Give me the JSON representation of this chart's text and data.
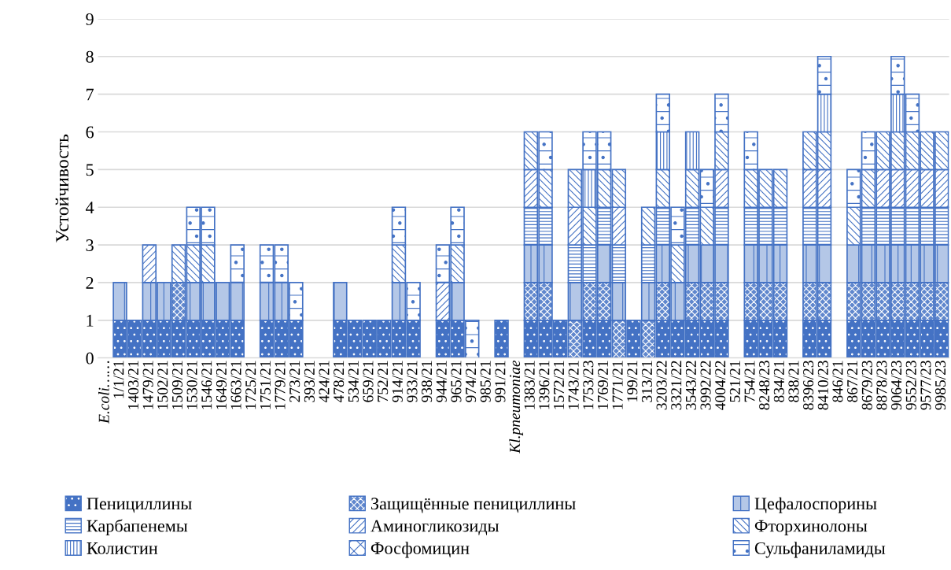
{
  "chart_data": {
    "type": "bar",
    "stacked": true,
    "ylabel": "Устойчивость",
    "categories": [
      "E.coli……",
      "1/1/21",
      "1403/21",
      "1479/21",
      "1502/21",
      "1509/21",
      "1530/21",
      "1546/21",
      "1649/21",
      "1663/21",
      "1725/21",
      "1751/21",
      "1779/21",
      "273/21",
      "393/21",
      "424/21",
      "478/21",
      "534/21",
      "659/21",
      "752/21",
      "914/21",
      "933/21",
      "938/21",
      "944/21",
      "965/21",
      "974/21",
      "985/21",
      "991/21",
      "Kl.pneumoniae",
      "1383/21",
      "1396/21",
      "1572/21",
      "1743/21",
      "1753/23",
      "1769/21",
      "1771/21",
      "199/21",
      "313/21",
      "3203/22",
      "3321/22",
      "3543/22",
      "3992/22",
      "4004/22",
      "521/21",
      "754/21",
      "8248/23",
      "834/21",
      "838/21",
      "8396/23",
      "8410/23",
      "846/21",
      "867/21",
      "8679/23",
      "8878/23",
      "9064/23",
      "9552/23",
      "9577/23",
      "9985/23"
    ],
    "series": [
      {
        "name": "Пенициллины",
        "color": "#4472c4",
        "values": [
          0,
          1,
          1,
          1,
          1,
          1,
          1,
          1,
          1,
          1,
          0,
          1,
          1,
          1,
          0,
          0,
          1,
          1,
          1,
          1,
          1,
          1,
          0,
          1,
          1,
          0,
          0,
          1,
          0,
          1,
          1,
          1,
          0,
          1,
          1,
          0,
          1,
          0,
          1,
          1,
          1,
          1,
          1,
          0,
          1,
          1,
          1,
          0,
          1,
          1,
          0,
          1,
          1,
          1,
          1,
          1,
          1,
          1
        ]
      },
      {
        "name": "Защищённые пенициллины",
        "color": "#4472c4",
        "values": [
          0,
          0,
          0,
          0,
          0,
          1,
          0,
          0,
          0,
          0,
          0,
          0,
          0,
          0,
          0,
          0,
          0,
          0,
          0,
          0,
          0,
          0,
          0,
          0,
          0,
          0,
          0,
          0,
          0,
          1,
          1,
          0,
          1,
          1,
          1,
          1,
          0,
          1,
          1,
          0,
          1,
          1,
          1,
          0,
          1,
          1,
          1,
          0,
          1,
          1,
          0,
          1,
          1,
          1,
          1,
          1,
          1,
          1
        ]
      },
      {
        "name": "Цефалоспорины",
        "color": "#4472c4",
        "values": [
          0,
          1,
          0,
          1,
          1,
          0,
          1,
          1,
          1,
          1,
          0,
          1,
          1,
          0,
          0,
          0,
          1,
          0,
          0,
          0,
          1,
          0,
          0,
          0,
          1,
          0,
          0,
          0,
          0,
          1,
          1,
          0,
          1,
          0,
          1,
          1,
          0,
          1,
          1,
          1,
          1,
          1,
          1,
          0,
          1,
          1,
          1,
          0,
          1,
          1,
          0,
          1,
          1,
          1,
          1,
          1,
          1,
          1
        ]
      },
      {
        "name": "Карбапенемы",
        "color": "#4472c4",
        "values": [
          0,
          0,
          0,
          0,
          0,
          0,
          0,
          0,
          0,
          0,
          0,
          0,
          0,
          0,
          0,
          0,
          0,
          0,
          0,
          0,
          0,
          0,
          0,
          0,
          0,
          0,
          0,
          0,
          0,
          1,
          1,
          0,
          1,
          1,
          1,
          1,
          0,
          1,
          1,
          0,
          1,
          0,
          1,
          0,
          1,
          1,
          1,
          0,
          1,
          1,
          0,
          0,
          1,
          1,
          1,
          1,
          1,
          1
        ]
      },
      {
        "name": "Аминогликозиды",
        "color": "#4472c4",
        "values": [
          0,
          0,
          0,
          1,
          0,
          0,
          0,
          0,
          0,
          0,
          0,
          0,
          0,
          0,
          0,
          0,
          0,
          0,
          0,
          0,
          0,
          0,
          0,
          1,
          0,
          0,
          0,
          0,
          0,
          1,
          0,
          0,
          1,
          0,
          0,
          1,
          0,
          0,
          0,
          0,
          0,
          0,
          1,
          0,
          0,
          0,
          0,
          0,
          1,
          1,
          0,
          0,
          0,
          1,
          1,
          1,
          1,
          1
        ]
      },
      {
        "name": "Фторхинолоны",
        "color": "#4472c4",
        "values": [
          0,
          0,
          0,
          0,
          0,
          1,
          1,
          1,
          0,
          0,
          0,
          0,
          0,
          0,
          0,
          0,
          0,
          0,
          0,
          0,
          1,
          0,
          0,
          0,
          1,
          0,
          0,
          0,
          0,
          1,
          1,
          0,
          1,
          1,
          1,
          1,
          0,
          1,
          1,
          1,
          1,
          1,
          1,
          0,
          1,
          1,
          1,
          0,
          1,
          1,
          0,
          1,
          1,
          1,
          1,
          1,
          1,
          1
        ]
      },
      {
        "name": "Колистин",
        "color": "#4472c4",
        "values": [
          0,
          0,
          0,
          0,
          0,
          0,
          0,
          0,
          0,
          0,
          0,
          0,
          0,
          0,
          0,
          0,
          0,
          0,
          0,
          0,
          0,
          0,
          0,
          0,
          0,
          0,
          0,
          0,
          0,
          0,
          0,
          0,
          0,
          1,
          0,
          0,
          0,
          0,
          1,
          0,
          1,
          0,
          0,
          0,
          0,
          0,
          0,
          0,
          0,
          1,
          0,
          0,
          0,
          0,
          1,
          0,
          0,
          0
        ]
      },
      {
        "name": "Фосфомицин",
        "color": "#4472c4",
        "values": [
          0,
          0,
          0,
          0,
          0,
          0,
          0,
          0,
          0,
          0,
          0,
          0,
          0,
          0,
          0,
          0,
          0,
          0,
          0,
          0,
          0,
          0,
          0,
          0,
          0,
          0,
          0,
          0,
          0,
          0,
          0,
          0,
          0,
          0,
          0,
          0,
          0,
          0,
          0,
          0,
          0,
          0,
          0,
          0,
          0,
          0,
          0,
          0,
          0,
          0,
          0,
          0,
          0,
          0,
          0,
          0,
          0,
          0
        ]
      },
      {
        "name": "Сульфаниламиды",
        "color": "#4472c4",
        "values": [
          0,
          0,
          0,
          0,
          0,
          0,
          1,
          1,
          0,
          1,
          0,
          1,
          1,
          1,
          0,
          0,
          0,
          0,
          0,
          0,
          1,
          1,
          0,
          1,
          1,
          1,
          0,
          0,
          0,
          0,
          1,
          0,
          0,
          1,
          1,
          0,
          0,
          0,
          1,
          1,
          0,
          1,
          1,
          0,
          1,
          0,
          0,
          0,
          0,
          1,
          0,
          1,
          1,
          0,
          1,
          1,
          0,
          0
        ]
      }
    ],
    "ylim": [
      0,
      9
    ],
    "yticks": [
      0,
      1,
      2,
      3,
      4,
      5,
      6,
      7,
      8,
      9
    ],
    "grid": "y",
    "legend": "bottom"
  }
}
